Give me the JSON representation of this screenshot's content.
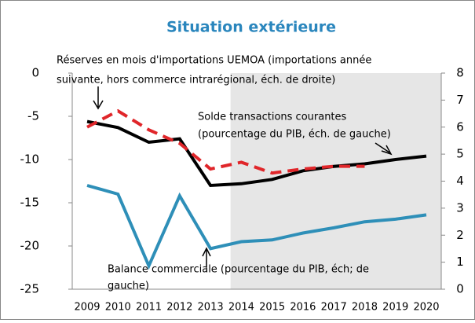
{
  "chart_data": {
    "type": "line",
    "title": "Situation extérieure",
    "categories": [
      "2009",
      "2010",
      "2011",
      "2012",
      "2013",
      "2014",
      "2015",
      "2016",
      "2017",
      "2018",
      "2019",
      "2020"
    ],
    "series": [
      {
        "name": "Solde transactions courantes",
        "color": "#000000",
        "values": [
          -5.6,
          -6.3,
          -8.0,
          -7.6,
          -13.0,
          -12.8,
          -12.3,
          -11.3,
          -10.8,
          -10.5,
          -10.0,
          -9.6
        ]
      },
      {
        "name": "Balance commerciale",
        "color": "#2e8fb8",
        "values": [
          -13.0,
          -14.0,
          -22.3,
          -14.2,
          -20.3,
          -19.5,
          -19.3,
          -18.5,
          -17.9,
          -17.2,
          -16.9,
          -16.4
        ]
      },
      {
        "name": "Réserves en mois d'importations UEMOA",
        "color": "#e0262a",
        "axis": "y2",
        "dashed": true,
        "values": [
          6.0,
          6.6,
          5.9,
          5.4,
          4.45,
          4.7,
          4.3,
          4.45,
          4.55,
          4.55,
          null,
          null
        ]
      }
    ],
    "annotations": [
      [
        "Réserves en mois d'importations UEMOA (importations année",
        "suivante, hors commerce intrarégional, éch. de droite)"
      ],
      [
        "Solde transactions courantes",
        "(pourcentage  du PIB,  éch. de gauche)"
      ],
      [
        "Balance  commerciale  (pourcentage  du PIB, éch; de",
        "gauche)"
      ]
    ],
    "ylim": [
      -25,
      0
    ],
    "yticks": [
      0,
      -5,
      -10,
      -15,
      -20,
      -25
    ],
    "y2lim": [
      0,
      8
    ],
    "y2ticks": [
      0,
      1,
      2,
      3,
      4,
      5,
      6,
      7,
      8
    ]
  }
}
